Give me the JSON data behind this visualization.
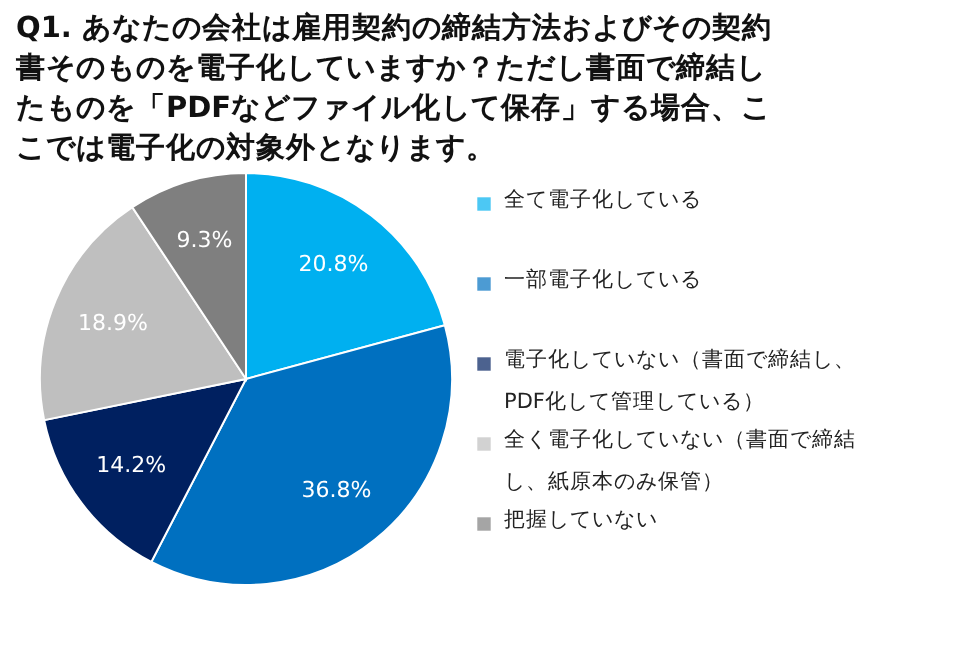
{
  "chart_data": {
    "type": "pie",
    "title": "Q1. あなたの会社は雇用契約の締結方法およびその契約書そのものを電子化していますか？ただし書面で締結したものを「PDFなどファイル化して保存」する場合、ここでは電子化の対象外となります。",
    "categories": [
      "全て電子化している",
      "一部電子化している",
      "電子化していない（書面で締結し、PDF化して管理している）",
      "全く電子化していない（書面で締結し、紙原本のみ保管）",
      "把握していない"
    ],
    "values": [
      20.8,
      36.8,
      14.2,
      18.9,
      9.3
    ],
    "value_labels": [
      "20.8%",
      "36.8%",
      "14.2%",
      "18.9%",
      "9.3%"
    ],
    "colors": [
      "#00b0f0",
      "#0070c0",
      "#002060",
      "#bfbfbf",
      "#7f7f7f"
    ],
    "legend": "right"
  }
}
